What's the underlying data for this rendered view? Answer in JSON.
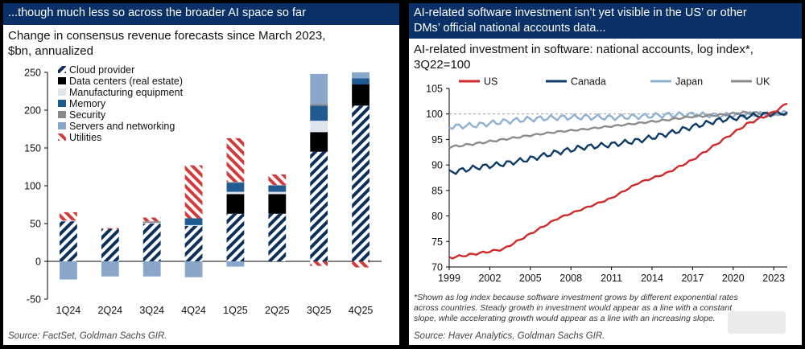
{
  "left": {
    "banner": "...though much less so across the broader AI space so far",
    "subtitle_line1": "Change in consensus revenue forecasts since March 2023,",
    "subtitle_line2": "$bn, annualized",
    "source": "Source: FactSet, Goldman Sachs GIR."
  },
  "right": {
    "banner_line1": "AI-related software investment isn’t yet visible in the US’ or other",
    "banner_line2": "DMs’ official national accounts data...",
    "subtitle_line1": "AI-related investment in software: national accounts, log index*,",
    "subtitle_line2": "3Q22=100",
    "note_line1": "*Shown as log index because software investment grows by different exponential rates",
    "note_line2": "across countries. Steady growth in investment would appear as a line with a constant",
    "note_line3": "slope, while accelerating growth would appear as a line with an increasing slope.",
    "source": "Source: Haver Analytics, Goldman Sachs GIR."
  },
  "colors": {
    "banner": "#0a3068",
    "Cloud provider": "#0d2f5c",
    "Data centers (real estate)": "#000000",
    "Manufacturing equipment": "#dfe5ee",
    "Memory": "#1f5a92",
    "Security": "#8a8a8a",
    "Servers and networking": "#8aa6c8",
    "Utilities": "#d33a3a",
    "US": "#d12a2a",
    "Canada": "#0d3a66",
    "Japan": "#8fb0d0",
    "UK": "#8c8c8c"
  },
  "chart_data": [
    {
      "type": "bar",
      "stacked": true,
      "categories": [
        "1Q24",
        "2Q24",
        "3Q24",
        "4Q24",
        "1Q25",
        "2Q25",
        "3Q25",
        "4Q25"
      ],
      "series": [
        {
          "name": "Cloud provider",
          "values": [
            53,
            43,
            50,
            47,
            63,
            63,
            145,
            206
          ]
        },
        {
          "name": "Data centers (real estate)",
          "values": [
            0,
            0,
            0,
            0,
            26,
            26,
            26,
            28
          ]
        },
        {
          "name": "Manufacturing equipment",
          "values": [
            1,
            0,
            1,
            1,
            3,
            3,
            15,
            0
          ]
        },
        {
          "name": "Memory",
          "values": [
            0,
            0,
            0,
            9,
            12,
            8,
            20,
            8
          ]
        },
        {
          "name": "Security",
          "values": [
            0,
            0,
            2,
            0,
            1,
            1,
            2,
            0
          ]
        },
        {
          "name": "Servers and networking",
          "values": [
            -24,
            -20,
            -20,
            -21,
            -7,
            0,
            40,
            8
          ]
        },
        {
          "name": "Utilities",
          "values": [
            11,
            1,
            5,
            70,
            58,
            14,
            -6,
            -8
          ]
        }
      ],
      "xlabel": "",
      "ylabel": "",
      "ylim": [
        -50,
        250
      ],
      "yticks": [
        -50,
        0,
        50,
        100,
        150,
        200,
        250
      ],
      "legend_position": "top-left"
    },
    {
      "type": "line",
      "series": [
        {
          "name": "US",
          "x": [
            1999,
            2001,
            2003,
            2005,
            2007,
            2009,
            2011,
            2013,
            2015,
            2017,
            2019,
            2021,
            2022.75,
            2024
          ],
          "y": [
            71.8,
            72.6,
            73.5,
            76.5,
            79.5,
            81.5,
            83.5,
            86.5,
            88.3,
            91.0,
            94.5,
            98.0,
            100,
            102.0
          ]
        },
        {
          "name": "Canada",
          "x": [
            1999,
            2001,
            2003,
            2005,
            2007,
            2009,
            2011,
            2013,
            2015,
            2017,
            2019,
            2021,
            2022.75,
            2024
          ],
          "y": [
            88.5,
            89.5,
            90.2,
            91.2,
            92.5,
            93.5,
            94.0,
            94.8,
            96.0,
            97.5,
            98.8,
            99.5,
            100,
            100.3
          ]
        },
        {
          "name": "Japan",
          "x": [
            1999,
            2001,
            2003,
            2005,
            2007,
            2009,
            2011,
            2013,
            2015,
            2017,
            2019,
            2021,
            2022.75,
            2024
          ],
          "y": [
            97.5,
            97.8,
            98.5,
            99.0,
            99.3,
            99.4,
            99.3,
            99.5,
            99.8,
            99.9,
            99.7,
            99.9,
            100,
            100.2
          ]
        },
        {
          "name": "UK",
          "x": [
            1999,
            2001,
            2003,
            2005,
            2007,
            2009,
            2011,
            2013,
            2015,
            2017,
            2019,
            2021,
            2022.75,
            2024
          ],
          "y": [
            93.5,
            94.2,
            95.0,
            95.8,
            96.5,
            97.0,
            97.6,
            98.2,
            98.8,
            99.5,
            99.8,
            100.3,
            100,
            100.0
          ]
        }
      ],
      "xlabel": "",
      "ylabel": "",
      "xlim": [
        1999,
        2024
      ],
      "ylim": [
        70,
        105
      ],
      "xticks": [
        1999,
        2002,
        2005,
        2008,
        2011,
        2014,
        2017,
        2020,
        2023
      ],
      "yticks": [
        70,
        75,
        80,
        85,
        90,
        95,
        100,
        105
      ],
      "reference_line": 100,
      "legend_position": "top"
    }
  ]
}
